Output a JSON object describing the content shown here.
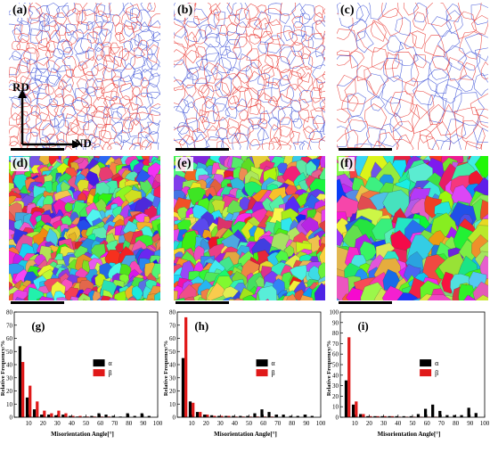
{
  "maps": {
    "labels": [
      "(a)",
      "(b)",
      "(c)",
      "(d)",
      "(e)",
      "(f)"
    ],
    "directions": {
      "rd": "RD",
      "nd": "ND"
    },
    "colors": {
      "low_angle": "#e8332e",
      "high_angle": "#3b4fd6"
    }
  },
  "legend": {
    "alpha": "α",
    "beta": "β"
  },
  "series_colors": {
    "alpha": "#000000",
    "beta": "#e01919"
  },
  "chart_data": [
    {
      "type": "bar",
      "label": "(g)",
      "xlabel": "Misorientation Angle[°]",
      "ylabel": "Relative Frequency/%",
      "xlim": [
        0,
        100
      ],
      "ylim": [
        0,
        80
      ],
      "xticks": [
        10,
        20,
        30,
        40,
        50,
        60,
        70,
        80,
        90,
        100
      ],
      "yticks": [
        0,
        10,
        20,
        30,
        40,
        50,
        60,
        70,
        80
      ],
      "x": [
        5,
        10,
        15,
        20,
        25,
        30,
        35,
        40,
        45,
        50,
        55,
        60,
        65,
        70,
        75,
        80,
        85,
        90,
        95
      ],
      "series": [
        {
          "name": "α",
          "values": [
            54,
            15,
            6,
            2,
            2,
            1.5,
            2,
            1,
            0.5,
            0.5,
            1,
            3,
            2,
            1,
            0.5,
            3,
            1,
            3,
            1
          ]
        },
        {
          "name": "β",
          "values": [
            42,
            24,
            12,
            5,
            3,
            5,
            3,
            1,
            1,
            0.5,
            0.5,
            0.5,
            0.5,
            0,
            0,
            0,
            0,
            0,
            0
          ]
        }
      ]
    },
    {
      "type": "bar",
      "label": "(h)",
      "xlabel": "Misorientation Angle[°]",
      "ylabel": "Relative Frequency/%",
      "xlim": [
        0,
        100
      ],
      "ylim": [
        0,
        80
      ],
      "xticks": [
        10,
        20,
        30,
        40,
        50,
        60,
        70,
        80,
        90,
        100
      ],
      "yticks": [
        0,
        10,
        20,
        30,
        40,
        50,
        60,
        70,
        80
      ],
      "x": [
        5,
        10,
        15,
        20,
        25,
        30,
        35,
        40,
        45,
        50,
        55,
        60,
        65,
        70,
        75,
        80,
        85,
        90,
        95
      ],
      "series": [
        {
          "name": "α",
          "values": [
            45,
            12,
            4,
            2,
            1.5,
            1,
            1,
            1,
            1,
            1,
            3,
            6,
            4,
            2,
            2,
            1,
            1,
            2,
            1
          ]
        },
        {
          "name": "β",
          "values": [
            76,
            11,
            4,
            2,
            1,
            1,
            1,
            0.5,
            0.5,
            0.5,
            0.5,
            0.5,
            0.5,
            0,
            0,
            0,
            0,
            0,
            0
          ]
        }
      ]
    },
    {
      "type": "bar",
      "label": "(i)",
      "xlabel": "Misorientation Angle[°]",
      "ylabel": "Relative Frequency/%",
      "xlim": [
        0,
        100
      ],
      "ylim": [
        0,
        100
      ],
      "xticks": [
        10,
        20,
        30,
        40,
        50,
        60,
        70,
        80,
        90,
        100
      ],
      "yticks": [
        0,
        10,
        20,
        30,
        40,
        50,
        60,
        70,
        80,
        90,
        100
      ],
      "x": [
        5,
        10,
        15,
        20,
        25,
        30,
        35,
        40,
        45,
        50,
        55,
        60,
        65,
        70,
        75,
        80,
        85,
        90,
        95
      ],
      "series": [
        {
          "name": "α",
          "values": [
            35,
            12,
            3,
            1,
            1,
            1,
            1,
            1,
            1,
            1,
            3,
            8,
            12,
            6,
            2,
            2,
            2,
            9,
            4
          ]
        },
        {
          "name": "β",
          "values": [
            76,
            15,
            3,
            1,
            1,
            1,
            1,
            0.5,
            0.5,
            0.5,
            0.5,
            0.5,
            0.5,
            0,
            0,
            0,
            0,
            0,
            0
          ]
        }
      ]
    }
  ]
}
